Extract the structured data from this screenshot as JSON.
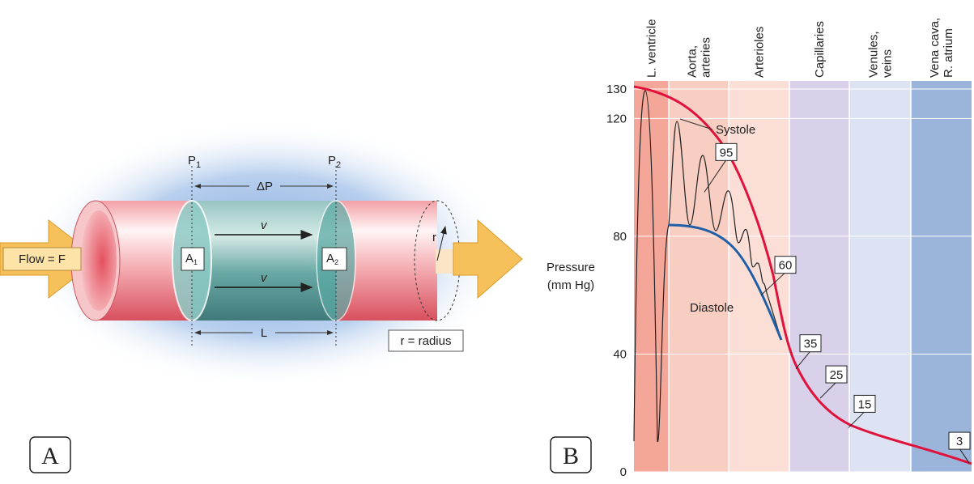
{
  "panel_a": {
    "label": "A",
    "flow": "Flow = F",
    "p1": {
      "base": "P",
      "sub": "1"
    },
    "p2": {
      "base": "P",
      "sub": "2"
    },
    "delta_p": "ΔP",
    "length": "L",
    "a1": {
      "base": "A",
      "sub": "1"
    },
    "a2": {
      "base": "A",
      "sub": "2"
    },
    "velocity": [
      "v",
      "v"
    ],
    "radius_symbol": "r",
    "radius_key": "r = radius"
  },
  "chart_data": {
    "type": "line",
    "label": "B",
    "ylabel": [
      "Pressure",
      "(mm Hg)"
    ],
    "categories": [
      [
        "L. ventricle"
      ],
      [
        "Aorta,",
        "arteries"
      ],
      [
        "Arterioles"
      ],
      [
        "Capillaries"
      ],
      [
        "Venules,",
        "veins"
      ],
      [
        "Vena cava,",
        "R. atrium"
      ]
    ],
    "region_colors": [
      "#f4a798",
      "#f8cdc2",
      "#fbded6",
      "#d9d1ea",
      "#dde3f2",
      "#9bb4da"
    ],
    "ylim": [
      0,
      130
    ],
    "yticks": [
      0,
      40,
      80,
      120,
      130
    ],
    "grid": true,
    "annotations": [
      "Systole",
      "Diastole"
    ],
    "mean_pressures": [
      95,
      60,
      35,
      25,
      15,
      3
    ],
    "curve_colors": {
      "systole": "#e0123c",
      "diastole": "#1f5fa8",
      "pulse": "#222222"
    }
  }
}
